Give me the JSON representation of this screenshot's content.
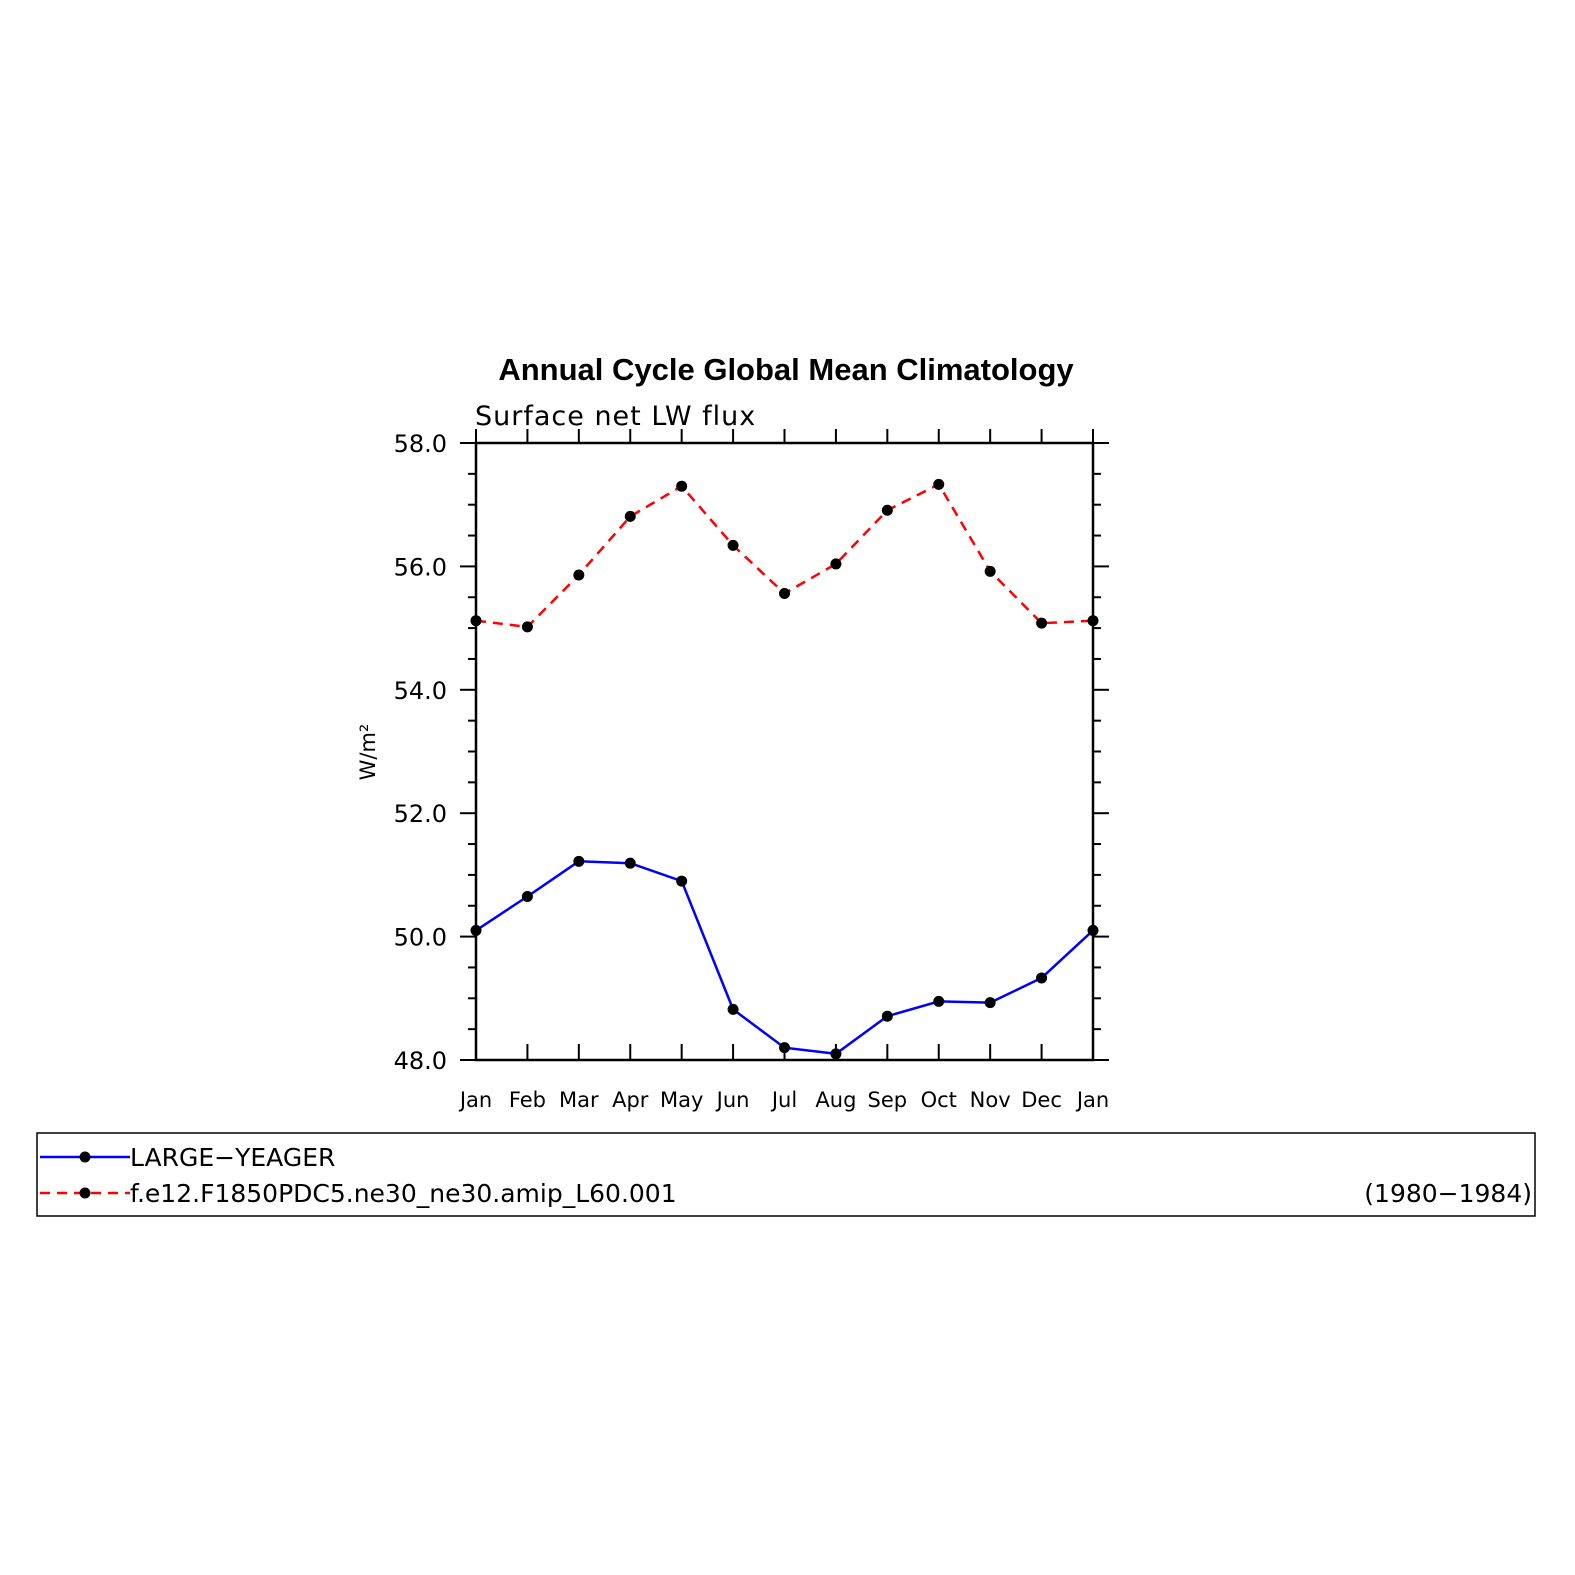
{
  "chart_data": {
    "type": "line",
    "title": "Annual Cycle Global Mean Climatology",
    "subtitle": "Surface net LW flux",
    "ylabel": "W/m²",
    "ylim": [
      48.0,
      58.0
    ],
    "yticks": [
      "48.0",
      "50.0",
      "52.0",
      "54.0",
      "56.0",
      "58.0"
    ],
    "categories": [
      "Jan",
      "Feb",
      "Mar",
      "Apr",
      "May",
      "Jun",
      "Jul",
      "Aug",
      "Sep",
      "Oct",
      "Nov",
      "Dec",
      "Jan"
    ],
    "grid": false,
    "legend_position": "bottom",
    "series": [
      {
        "name": "LARGE−YEAGER",
        "color": "#0000ff",
        "dash": "solid",
        "marker": "dot",
        "values": [
          50.1,
          50.65,
          51.22,
          51.19,
          50.9,
          48.82,
          48.2,
          48.1,
          48.71,
          48.95,
          48.93,
          49.33,
          50.1
        ]
      },
      {
        "name": "f.e12.F1850PDC5.ne30_ne30.amip_L60.001",
        "color": "#ff0000",
        "dash": "dashed",
        "marker": "dot",
        "values": [
          55.12,
          55.02,
          55.86,
          56.81,
          57.3,
          56.34,
          55.56,
          56.04,
          56.91,
          57.33,
          55.92,
          55.08,
          55.12
        ]
      }
    ],
    "legend_note": "(1980−1984)"
  }
}
